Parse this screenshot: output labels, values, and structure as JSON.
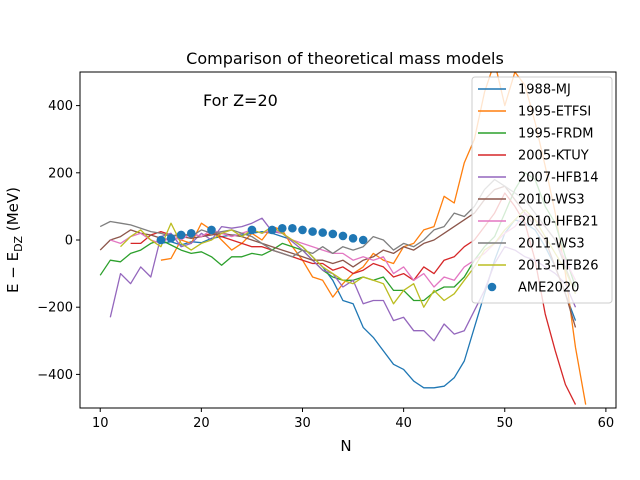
{
  "chart_data": {
    "type": "line",
    "title": "Comparison of theoretical mass models",
    "xlabel": "N",
    "ylabel": "E − E_DZ (MeV)",
    "annotation": "For Z=20",
    "xlim": [
      8,
      61
    ],
    "ylim": [
      -500,
      500
    ],
    "xticks": [
      10,
      20,
      30,
      40,
      50,
      60
    ],
    "yticks": [
      -400,
      -200,
      0,
      200,
      400
    ],
    "grid": false,
    "legend_position": "top-right",
    "series": [
      {
        "name": "1988-MJ",
        "color": "#1f77b4",
        "x": [
          16,
          17,
          18,
          19,
          20,
          21,
          22,
          23,
          24,
          25,
          26,
          27,
          28,
          29,
          30,
          31,
          32,
          33,
          34,
          35,
          36,
          37,
          38,
          39,
          40,
          41,
          42,
          43,
          44,
          45,
          46,
          47,
          48,
          49,
          50,
          51,
          52,
          53,
          54,
          55,
          56,
          57
        ],
        "y": [
          -10,
          -5,
          -15,
          -5,
          -8,
          5,
          10,
          15,
          15,
          20,
          25,
          20,
          10,
          0,
          -20,
          -50,
          -80,
          -120,
          -180,
          -190,
          -260,
          -290,
          -330,
          -370,
          -385,
          -420,
          -440,
          -440,
          -435,
          -410,
          -360,
          -260,
          -160,
          -60,
          20,
          60,
          50,
          30,
          -20,
          -80,
          -160,
          -240
        ]
      },
      {
        "name": "1995-ETFSI",
        "color": "#ff7f0e",
        "x": [
          16,
          17,
          18,
          19,
          20,
          21,
          22,
          23,
          24,
          25,
          26,
          27,
          28,
          29,
          30,
          31,
          32,
          33,
          34,
          35,
          36,
          37,
          38,
          39,
          40,
          41,
          42,
          43,
          44,
          45,
          46,
          47,
          48,
          49,
          50,
          51,
          52,
          53,
          54,
          55,
          56,
          57,
          58
        ],
        "y": [
          -60,
          -55,
          0,
          -10,
          50,
          30,
          0,
          -30,
          -10,
          20,
          0,
          40,
          30,
          -20,
          -60,
          -110,
          -120,
          -170,
          -130,
          -100,
          -80,
          -40,
          -60,
          -70,
          -20,
          -10,
          30,
          40,
          130,
          110,
          230,
          300,
          440,
          530,
          400,
          500,
          460,
          350,
          220,
          80,
          -100,
          -320,
          -490
        ]
      },
      {
        "name": "1995-FRDM",
        "color": "#2ca02c",
        "x": [
          10,
          11,
          12,
          13,
          14,
          15,
          16,
          17,
          18,
          19,
          20,
          21,
          22,
          23,
          24,
          25,
          26,
          27,
          28,
          29,
          30,
          31,
          32,
          33,
          34,
          35,
          36,
          37,
          38,
          39,
          40,
          41,
          42,
          43,
          44,
          45,
          46,
          47,
          48,
          49,
          50,
          51,
          52,
          53,
          54,
          55,
          56,
          57
        ],
        "y": [
          -105,
          -60,
          -65,
          -40,
          -30,
          -10,
          0,
          -15,
          -30,
          -40,
          -35,
          -50,
          -75,
          -50,
          -50,
          -40,
          -45,
          -30,
          -10,
          -20,
          -30,
          -60,
          -90,
          -110,
          -120,
          -120,
          -110,
          -120,
          -110,
          -150,
          -150,
          -180,
          -180,
          -155,
          -140,
          -140,
          -110,
          -60,
          -20,
          10,
          80,
          150,
          200,
          180,
          100,
          50,
          -50,
          -140
        ]
      },
      {
        "name": "2005-KTUY",
        "color": "#d62728",
        "x": [
          13,
          14,
          15,
          16,
          17,
          18,
          19,
          20,
          21,
          22,
          23,
          24,
          25,
          26,
          27,
          28,
          29,
          30,
          31,
          32,
          33,
          34,
          35,
          36,
          37,
          38,
          39,
          40,
          41,
          42,
          43,
          44,
          45,
          46,
          47,
          48,
          49,
          50,
          51,
          52,
          53,
          54,
          55,
          56,
          57
        ],
        "y": [
          -10,
          -10,
          15,
          25,
          15,
          10,
          20,
          10,
          20,
          10,
          0,
          -10,
          -20,
          -20,
          -30,
          -40,
          -50,
          -60,
          -70,
          -70,
          -90,
          -80,
          -100,
          -90,
          -70,
          -80,
          -110,
          -100,
          -120,
          -80,
          -100,
          -60,
          -50,
          -20,
          0,
          40,
          80,
          140,
          100,
          50,
          -60,
          -220,
          -330,
          -430,
          -490
        ]
      },
      {
        "name": "2007-HFB14",
        "color": "#9467bd",
        "x": [
          11,
          12,
          13,
          14,
          15,
          16,
          17,
          18,
          19,
          20,
          21,
          22,
          23,
          24,
          25,
          26,
          27,
          28,
          29,
          30,
          31,
          32,
          33,
          34,
          35,
          36,
          37,
          38,
          39,
          40,
          41,
          42,
          43,
          44,
          45,
          46,
          47,
          48,
          49,
          50,
          51,
          52,
          53,
          54,
          55,
          56,
          57
        ],
        "y": [
          -230,
          -100,
          -130,
          -80,
          -110,
          10,
          20,
          -20,
          -10,
          20,
          0,
          40,
          35,
          40,
          50,
          65,
          25,
          20,
          -5,
          -30,
          -60,
          -90,
          -100,
          -140,
          -120,
          -190,
          -180,
          -180,
          -240,
          -230,
          -270,
          -270,
          -300,
          -250,
          -280,
          -270,
          -210,
          -150,
          -70,
          -20,
          -30,
          -50,
          -60,
          -80,
          -100,
          -130,
          -200
        ]
      },
      {
        "name": "2010-WS3",
        "color": "#8c564b",
        "x": [
          10,
          11,
          12,
          13,
          14,
          15,
          16,
          17,
          18,
          19,
          20,
          21,
          22,
          23,
          24,
          25,
          26,
          27,
          28,
          29,
          30,
          31,
          32,
          33,
          34,
          35,
          36,
          37,
          38,
          39,
          40,
          41,
          42,
          43,
          44,
          45,
          46,
          47,
          48,
          49,
          50,
          51,
          52,
          53,
          54,
          55,
          56,
          57
        ],
        "y": [
          -30,
          0,
          10,
          30,
          20,
          15,
          5,
          0,
          10,
          5,
          10,
          15,
          20,
          15,
          10,
          0,
          -10,
          -20,
          -30,
          -40,
          -50,
          -60,
          -60,
          -70,
          -60,
          -80,
          -60,
          -50,
          -30,
          -40,
          -20,
          -30,
          -10,
          0,
          20,
          40,
          60,
          80,
          120,
          150,
          160,
          120,
          80,
          40,
          0,
          -80,
          -160,
          -260
        ]
      },
      {
        "name": "2010-HFB21",
        "color": "#e377c2",
        "x": [
          11,
          12,
          13,
          14,
          15,
          16,
          17,
          18,
          19,
          20,
          21,
          22,
          23,
          24,
          25,
          26,
          27,
          28,
          29,
          30,
          31,
          32,
          33,
          34,
          35,
          36,
          37,
          38,
          39,
          40,
          41,
          42,
          43,
          44,
          45,
          46,
          47,
          48,
          49,
          50,
          51,
          52,
          53,
          54,
          55,
          56,
          57
        ],
        "y": [
          0,
          -10,
          10,
          20,
          0,
          -10,
          10,
          0,
          20,
          10,
          30,
          20,
          10,
          20,
          30,
          20,
          30,
          20,
          0,
          -10,
          -20,
          -30,
          -40,
          -40,
          -60,
          -50,
          -60,
          -50,
          -100,
          -80,
          -120,
          -100,
          -140,
          -110,
          -120,
          -80,
          -60,
          -40,
          -10,
          20,
          40,
          80,
          60,
          40,
          0,
          -60,
          -120
        ]
      },
      {
        "name": "2011-WS3",
        "color": "#7f7f7f",
        "x": [
          10,
          11,
          12,
          13,
          14,
          15,
          16,
          17,
          18,
          19,
          20,
          21,
          22,
          23,
          24,
          25,
          26,
          27,
          28,
          29,
          30,
          31,
          32,
          33,
          34,
          35,
          36,
          37,
          38,
          39,
          40,
          41,
          42,
          43,
          44,
          45,
          46,
          47,
          48,
          49,
          50,
          51,
          52,
          53,
          54,
          55,
          56,
          57
        ],
        "y": [
          40,
          55,
          50,
          45,
          35,
          25,
          20,
          10,
          20,
          10,
          30,
          20,
          25,
          30,
          20,
          10,
          -10,
          -30,
          -40,
          -50,
          -30,
          -40,
          -20,
          -40,
          -20,
          -30,
          -20,
          10,
          0,
          -30,
          -10,
          -20,
          0,
          30,
          40,
          80,
          70,
          100,
          150,
          180,
          160,
          140,
          120,
          80,
          40,
          0,
          -80,
          -160
        ]
      },
      {
        "name": "2013-HFB26",
        "color": "#bcbd22",
        "x": [
          12,
          13,
          14,
          15,
          16,
          17,
          18,
          19,
          20,
          21,
          22,
          23,
          24,
          25,
          26,
          27,
          28,
          29,
          30,
          31,
          32,
          33,
          34,
          35,
          36,
          37,
          38,
          39,
          40,
          41,
          42,
          43,
          44,
          45,
          46,
          47,
          48,
          49,
          50,
          51,
          52,
          53,
          54,
          55,
          56,
          57
        ],
        "y": [
          -20,
          10,
          30,
          0,
          -20,
          50,
          -10,
          -30,
          -10,
          0,
          20,
          30,
          10,
          30,
          20,
          40,
          20,
          0,
          -20,
          -50,
          -80,
          -100,
          -120,
          -130,
          -110,
          -120,
          -130,
          -190,
          -150,
          -130,
          -200,
          -150,
          -180,
          -160,
          -120,
          -80,
          -30,
          -10,
          30,
          60,
          90,
          60,
          10,
          -40,
          -90,
          -160
        ]
      }
    ],
    "scatter": {
      "name": "AME2020",
      "color": "#1f77b4",
      "x": [
        16,
        17,
        18,
        19,
        21,
        25,
        27,
        28,
        29,
        30,
        31,
        32,
        33,
        34,
        35,
        36
      ],
      "y": [
        0,
        5,
        15,
        20,
        30,
        30,
        30,
        35,
        35,
        30,
        25,
        22,
        18,
        12,
        5,
        0
      ]
    }
  }
}
